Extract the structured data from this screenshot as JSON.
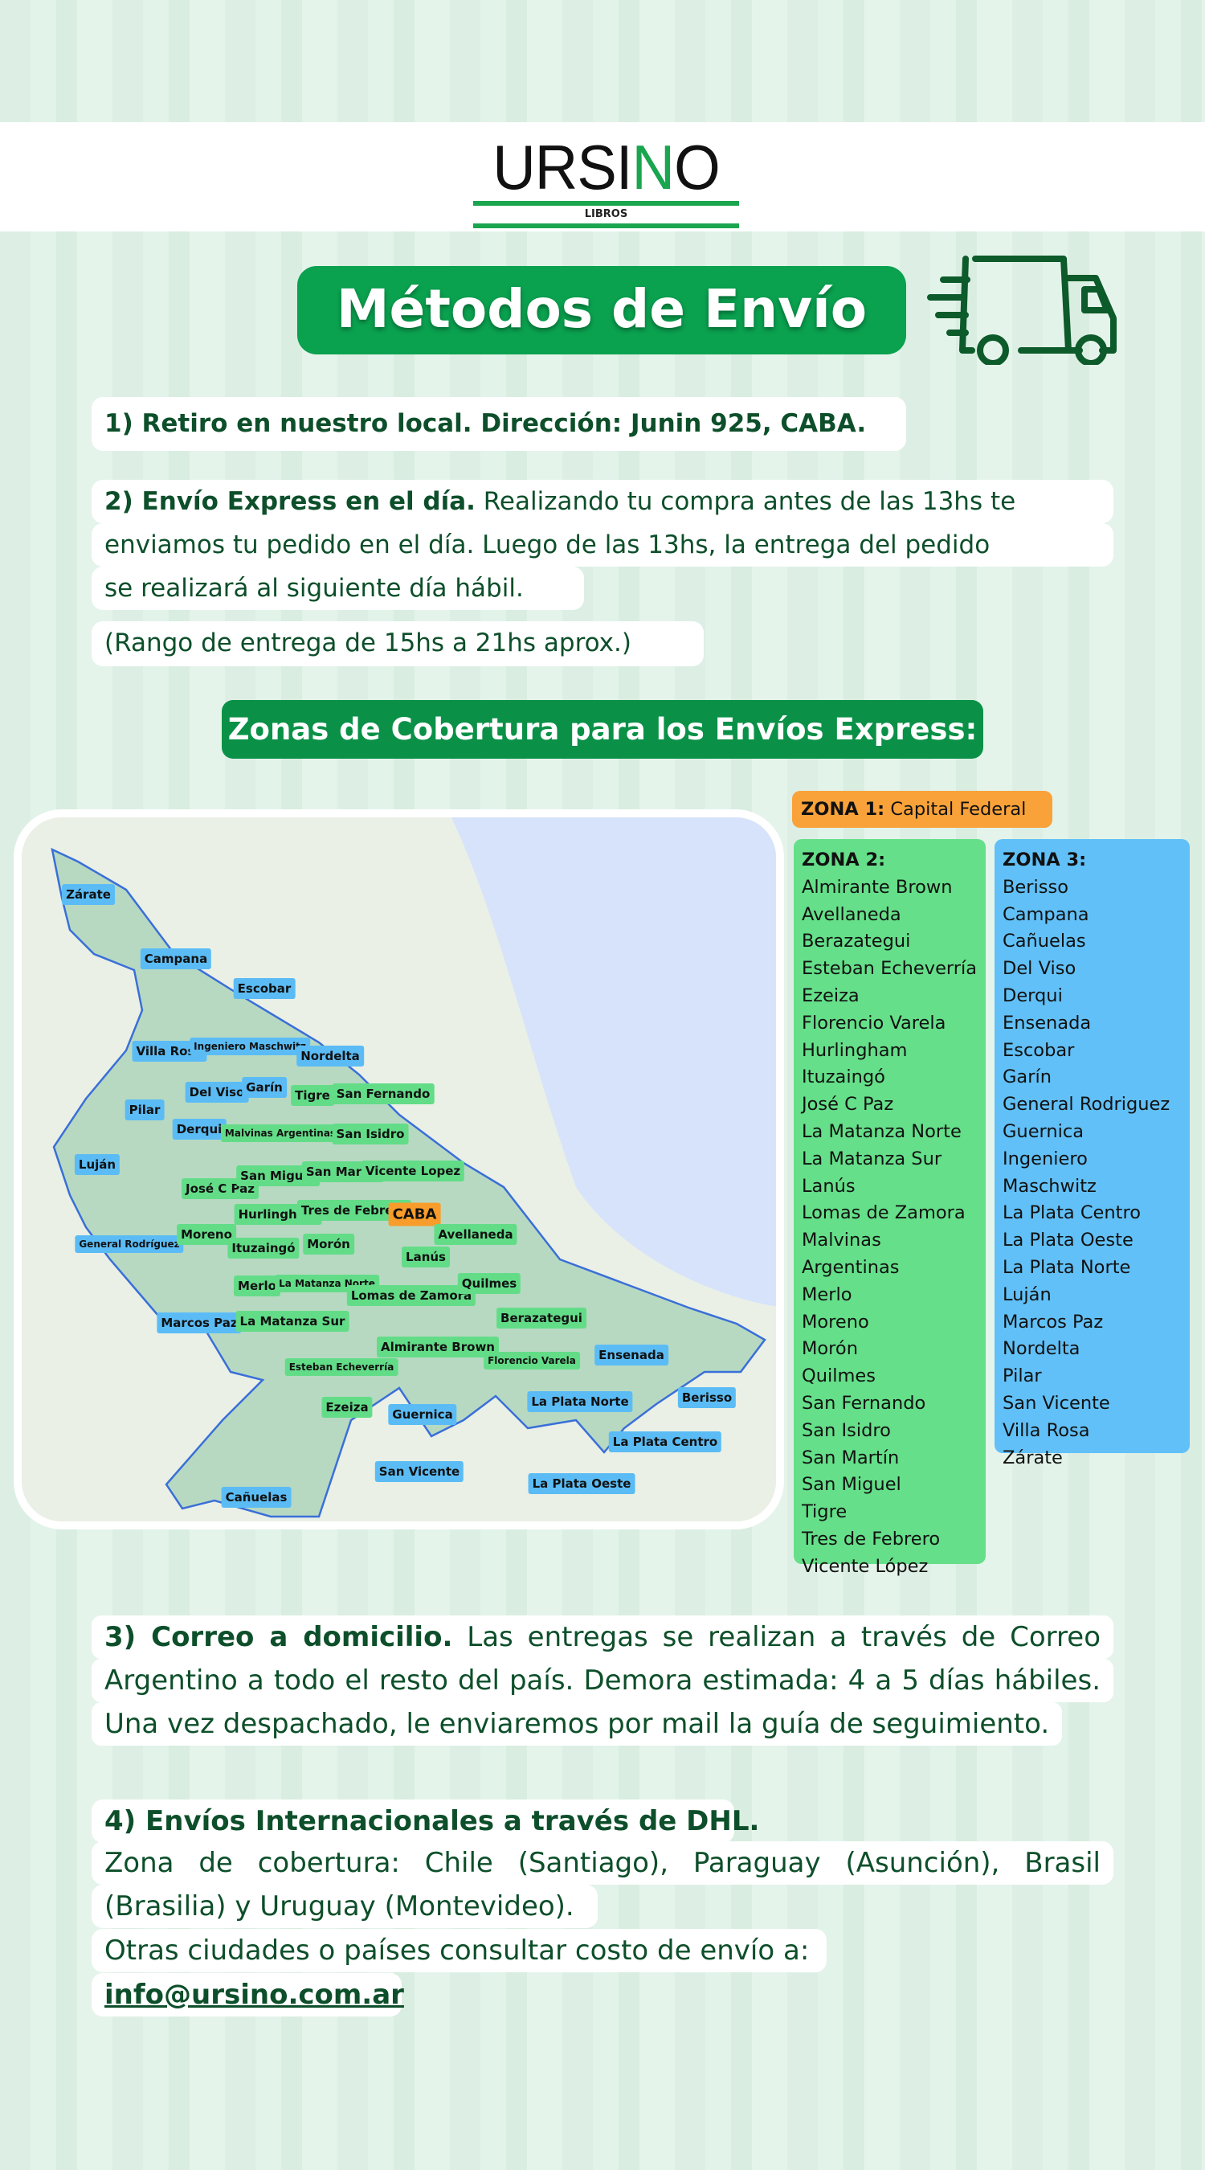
{
  "header": {
    "logo_text": "URSINO",
    "logo_subtitle": "LIBROS"
  },
  "title": "Métodos de Envío",
  "truck_icon": "delivery-truck-icon",
  "item1": {
    "text": "1) Retiro en nuestro local. Dirección: Junin 925, CABA."
  },
  "item2": {
    "bold": "2) Envío Express en el día.",
    "line1": " Realizando tu compra antes de las 13hs te",
    "line2": "enviamos tu pedido en el día. Luego de las 13hs, la entrega del pedido",
    "line3": "se realizará al siguiente día hábil.",
    "line4": "(Rango de entrega de 15hs a 21hs aprox.)"
  },
  "coverage_heading": "Zonas de Cobertura para los Envíos Express:",
  "map": {
    "labels": [
      {
        "name": "Zárate",
        "zone": 3
      },
      {
        "name": "Campana",
        "zone": 3
      },
      {
        "name": "Escobar",
        "zone": 3
      },
      {
        "name": "Villa Rosa",
        "zone": 3
      },
      {
        "name": "Ingeniero Maschwitz",
        "zone": 3
      },
      {
        "name": "Nordelta",
        "zone": 3
      },
      {
        "name": "Del Viso",
        "zone": 3
      },
      {
        "name": "Garín",
        "zone": 3
      },
      {
        "name": "Tigre",
        "zone": 2
      },
      {
        "name": "San Fernando",
        "zone": 2
      },
      {
        "name": "Pilar",
        "zone": 3
      },
      {
        "name": "Derqui",
        "zone": 3
      },
      {
        "name": "Malvinas Argentinas",
        "zone": 2
      },
      {
        "name": "San Isidro",
        "zone": 2
      },
      {
        "name": "Luján",
        "zone": 3
      },
      {
        "name": "José C Paz",
        "zone": 2
      },
      {
        "name": "San Miguel",
        "zone": 2
      },
      {
        "name": "San Martin",
        "zone": 2
      },
      {
        "name": "Vicente Lopez",
        "zone": 2
      },
      {
        "name": "Hurlingham",
        "zone": 2
      },
      {
        "name": "Tres de Febrero",
        "zone": 2
      },
      {
        "name": "CABA",
        "zone": 1
      },
      {
        "name": "General Rodríguez",
        "zone": 3
      },
      {
        "name": "Moreno",
        "zone": 2
      },
      {
        "name": "Ituzaingó",
        "zone": 2
      },
      {
        "name": "Morón",
        "zone": 2
      },
      {
        "name": "Avellaneda",
        "zone": 2
      },
      {
        "name": "Lanús",
        "zone": 2
      },
      {
        "name": "Merlo",
        "zone": 2
      },
      {
        "name": "La Matanza Norte",
        "zone": 2
      },
      {
        "name": "Lomas de Zamora",
        "zone": 2
      },
      {
        "name": "Quilmes",
        "zone": 2
      },
      {
        "name": "Marcos Paz",
        "zone": 3
      },
      {
        "name": "La Matanza Sur",
        "zone": 2
      },
      {
        "name": "Berazategui",
        "zone": 2
      },
      {
        "name": "Almirante Brown",
        "zone": 2
      },
      {
        "name": "Florencio Varela",
        "zone": 2
      },
      {
        "name": "Ensenada",
        "zone": 3
      },
      {
        "name": "Esteban Echeverría",
        "zone": 2
      },
      {
        "name": "Ezeiza",
        "zone": 2
      },
      {
        "name": "Guernica",
        "zone": 3
      },
      {
        "name": "La Plata Norte",
        "zone": 3
      },
      {
        "name": "Berisso",
        "zone": 3
      },
      {
        "name": "La Plata Centro",
        "zone": 3
      },
      {
        "name": "San Vicente",
        "zone": 3
      },
      {
        "name": "La Plata Oeste",
        "zone": 3
      },
      {
        "name": "Cañuelas",
        "zone": 3
      }
    ],
    "colors": {
      "zone1": "#f89c2b",
      "zone2": "#63dc88",
      "zone3": "#5bbcf5"
    }
  },
  "zones": {
    "zone1": {
      "label": "ZONA 1:",
      "name": "Capital Federal"
    },
    "zone2": {
      "label": "ZONA 2:",
      "items": [
        "Almirante Brown",
        "Avellaneda",
        "Berazategui",
        "Esteban Echeverría",
        "Ezeiza",
        "Florencio Varela",
        "Hurlingham",
        "Ituzaingó",
        "José C Paz",
        "La Matanza Norte",
        "La Matanza Sur",
        "Lanús",
        "Lomas de Zamora",
        "Malvinas Argentinas",
        "Merlo",
        "Moreno",
        "Morón",
        "Quilmes",
        "San Fernando",
        "San Isidro",
        "San Martín",
        "San Miguel",
        "Tigre",
        "Tres de Febrero",
        "Vicente López"
      ]
    },
    "zone3": {
      "label": "ZONA 3:",
      "items": [
        "Berisso",
        "Campana",
        "Cañuelas",
        "Del Viso",
        "Derqui",
        "Ensenada",
        "Escobar",
        "Garín",
        "General Rodriguez",
        "Guernica",
        "Ingeniero Maschwitz",
        "La Plata Centro",
        "La Plata Oeste",
        "La Plata Norte",
        "Luján",
        "Marcos Paz",
        "Nordelta",
        "Pilar",
        "San Vicente",
        "Villa Rosa",
        "Zárate"
      ]
    }
  },
  "item3": {
    "bold": "3) Correo a domicilio.",
    "line1": " Las entregas se realizan a través de Correo",
    "line2": "Argentino a todo el resto del país. Demora estimada: 4 a 5 días hábiles.",
    "line3": "Una vez despachado, le enviaremos por mail la guía de seguimiento."
  },
  "item4": {
    "title": "4) Envíos Internacionales a través de DHL.",
    "line1": "Zona de cobertura: Chile (Santiago), Paraguay (Asunción), Brasil",
    "line2": "(Brasilia) y Uruguay (Montevideo).",
    "line3": "Otras ciudades o países consultar costo de envío a:",
    "email": "info@ursino.com.ar"
  }
}
